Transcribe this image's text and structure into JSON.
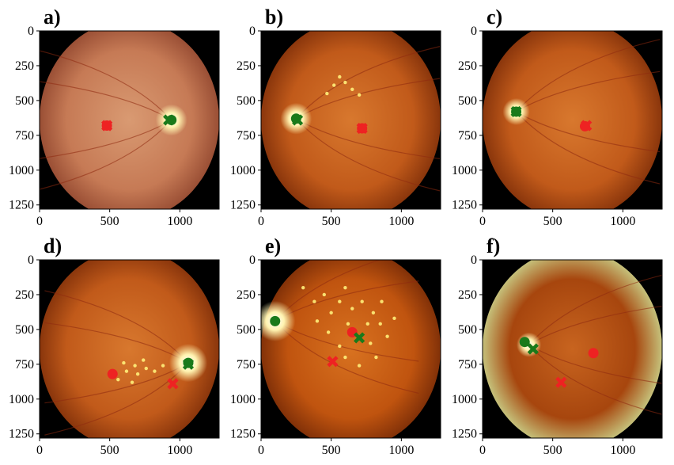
{
  "colors": {
    "background": "#000000",
    "fundus_inner": "#d2773c",
    "fundus_outer": "#8a3a14",
    "optic_disc": "#fff3b0",
    "exudate": "#fff07a",
    "ground_truth_marker": "#1a7a1a",
    "prediction_marker": "#ee2222"
  },
  "chart_data": [
    {
      "type": "scatter",
      "label": "a)",
      "xlim": [
        0,
        1280
      ],
      "ylim": [
        1280,
        0
      ],
      "xticks": [
        0,
        500,
        1000
      ],
      "yticks": [
        0,
        250,
        500,
        750,
        1000,
        1250
      ],
      "image_style": "pale",
      "optic_disc": {
        "x": 940,
        "y": 640,
        "r": 70
      },
      "exudates": [],
      "series": [
        {
          "marker": "x",
          "color": "red",
          "points": [
            [
              480,
              680
            ]
          ]
        },
        {
          "marker": "o",
          "color": "red",
          "points": [
            [
              480,
              680
            ]
          ]
        },
        {
          "marker": "x",
          "color": "green",
          "points": [
            [
              920,
              640
            ]
          ]
        },
        {
          "marker": "o",
          "color": "green",
          "points": [
            [
              940,
              640
            ]
          ]
        }
      ]
    },
    {
      "type": "scatter",
      "label": "b)",
      "xlim": [
        0,
        1280
      ],
      "ylim": [
        1280,
        0
      ],
      "xticks": [
        0,
        500,
        1000
      ],
      "yticks": [
        0,
        250,
        500,
        750,
        1000,
        1250
      ],
      "image_style": "normal",
      "optic_disc": {
        "x": 250,
        "y": 630,
        "r": 70
      },
      "exudates": [
        [
          560,
          330
        ],
        [
          600,
          370
        ],
        [
          520,
          390
        ],
        [
          650,
          420
        ],
        [
          700,
          460
        ],
        [
          470,
          450
        ]
      ],
      "series": [
        {
          "marker": "x",
          "color": "red",
          "points": [
            [
              720,
              700
            ]
          ]
        },
        {
          "marker": "o",
          "color": "red",
          "points": [
            [
              720,
              700
            ]
          ]
        },
        {
          "marker": "x",
          "color": "green",
          "points": [
            [
              260,
              640
            ]
          ]
        },
        {
          "marker": "o",
          "color": "green",
          "points": [
            [
              250,
              630
            ]
          ]
        }
      ]
    },
    {
      "type": "scatter",
      "label": "c)",
      "xlim": [
        0,
        1280
      ],
      "ylim": [
        1280,
        0
      ],
      "xticks": [
        0,
        500,
        1000
      ],
      "yticks": [
        0,
        250,
        500,
        750,
        1000,
        1250
      ],
      "image_style": "normal",
      "optic_disc": {
        "x": 240,
        "y": 580,
        "r": 60
      },
      "exudates": [],
      "series": [
        {
          "marker": "x",
          "color": "red",
          "points": [
            [
              740,
              680
            ]
          ]
        },
        {
          "marker": "o",
          "color": "red",
          "points": [
            [
              730,
              685
            ]
          ]
        },
        {
          "marker": "x",
          "color": "green",
          "points": [
            [
              240,
              580
            ]
          ]
        },
        {
          "marker": "o",
          "color": "green",
          "points": [
            [
              240,
              580
            ]
          ]
        }
      ]
    },
    {
      "type": "scatter",
      "label": "d)",
      "xlim": [
        0,
        1280
      ],
      "ylim": [
        1280,
        0
      ],
      "xticks": [
        0,
        500,
        1000
      ],
      "yticks": [
        0,
        250,
        500,
        750,
        1000,
        1250
      ],
      "image_style": "normal",
      "optic_disc": {
        "x": 1060,
        "y": 740,
        "r": 85
      },
      "exudates": [
        [
          560,
          860
        ],
        [
          620,
          800
        ],
        [
          680,
          760
        ],
        [
          700,
          820
        ],
        [
          760,
          780
        ],
        [
          820,
          800
        ],
        [
          740,
          720
        ],
        [
          600,
          740
        ],
        [
          880,
          760
        ],
        [
          660,
          880
        ]
      ],
      "series": [
        {
          "marker": "x",
          "color": "red",
          "points": [
            [
              950,
              890
            ]
          ]
        },
        {
          "marker": "o",
          "color": "red",
          "points": [
            [
              520,
              820
            ]
          ]
        },
        {
          "marker": "x",
          "color": "green",
          "points": [
            [
              1060,
              750
            ]
          ]
        },
        {
          "marker": "o",
          "color": "green",
          "points": [
            [
              1060,
              740
            ]
          ]
        }
      ]
    },
    {
      "type": "scatter",
      "label": "e)",
      "xlim": [
        0,
        1280
      ],
      "ylim": [
        1280,
        0
      ],
      "xticks": [
        0,
        500,
        1000
      ],
      "yticks": [
        0,
        250,
        500,
        750,
        1000,
        1250
      ],
      "image_style": "exudates",
      "optic_disc": {
        "x": 100,
        "y": 440,
        "r": 90
      },
      "exudates": [
        [
          300,
          200
        ],
        [
          380,
          300
        ],
        [
          450,
          250
        ],
        [
          500,
          380
        ],
        [
          560,
          300
        ],
        [
          600,
          200
        ],
        [
          650,
          350
        ],
        [
          720,
          300
        ],
        [
          800,
          380
        ],
        [
          850,
          460
        ],
        [
          900,
          550
        ],
        [
          780,
          600
        ],
        [
          560,
          620
        ],
        [
          600,
          700
        ],
        [
          700,
          760
        ],
        [
          820,
          700
        ],
        [
          400,
          440
        ],
        [
          480,
          520
        ],
        [
          860,
          300
        ],
        [
          950,
          420
        ],
        [
          620,
          460
        ],
        [
          760,
          460
        ]
      ],
      "series": [
        {
          "marker": "x",
          "color": "red",
          "points": [
            [
              510,
              730
            ]
          ]
        },
        {
          "marker": "o",
          "color": "red",
          "points": [
            [
              650,
              520
            ]
          ]
        },
        {
          "marker": "x",
          "color": "green",
          "points": [
            [
              700,
              560
            ]
          ]
        },
        {
          "marker": "o",
          "color": "green",
          "points": [
            [
              100,
              440
            ]
          ]
        }
      ]
    },
    {
      "type": "scatter",
      "label": "f)",
      "xlim": [
        0,
        1280
      ],
      "ylim": [
        1280,
        0
      ],
      "xticks": [
        0,
        500,
        1000
      ],
      "yticks": [
        0,
        250,
        500,
        750,
        1000,
        1250
      ],
      "image_style": "dark",
      "optic_disc": {
        "x": 330,
        "y": 610,
        "r": 55
      },
      "exudates": [],
      "series": [
        {
          "marker": "x",
          "color": "red",
          "points": [
            [
              560,
              880
            ]
          ]
        },
        {
          "marker": "o",
          "color": "red",
          "points": [
            [
              790,
              670
            ]
          ]
        },
        {
          "marker": "x",
          "color": "green",
          "points": [
            [
              360,
              640
            ]
          ]
        },
        {
          "marker": "o",
          "color": "green",
          "points": [
            [
              300,
              590
            ]
          ]
        }
      ]
    }
  ]
}
